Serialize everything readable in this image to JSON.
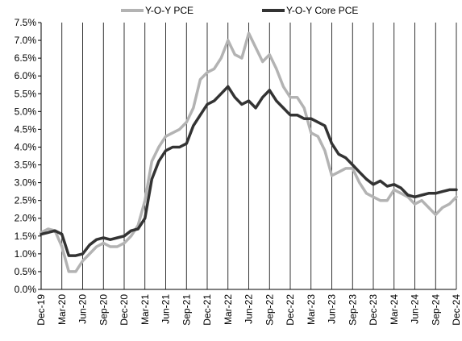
{
  "chart_data": {
    "type": "line",
    "title": "",
    "xlabel": "",
    "ylabel": "",
    "ylim": [
      0,
      7.5
    ],
    "y_ticks": [
      "0.0%",
      "0.5%",
      "1.0%",
      "1.5%",
      "2.0%",
      "2.5%",
      "3.0%",
      "3.5%",
      "4.0%",
      "4.5%",
      "5.0%",
      "5.5%",
      "6.0%",
      "6.5%",
      "7.0%",
      "7.5%"
    ],
    "x_ticks": [
      "Dec-19",
      "Mar-20",
      "Jun-20",
      "Sep-20",
      "Dec-20",
      "Mar-21",
      "Jun-21",
      "Sep-21",
      "Dec-21",
      "Mar-22",
      "Jun-22",
      "Sep-22",
      "Dec-22",
      "Mar-23",
      "Jun-23",
      "Sep-23",
      "Dec-23",
      "Mar-24",
      "Jun-24",
      "Sep-24",
      "Dec-24"
    ],
    "legend_position": "top",
    "grid": {
      "vertical": true,
      "horizontal": false
    },
    "x": [
      "Dec-19",
      "Jan-20",
      "Feb-20",
      "Mar-20",
      "Apr-20",
      "May-20",
      "Jun-20",
      "Jul-20",
      "Aug-20",
      "Sep-20",
      "Oct-20",
      "Nov-20",
      "Dec-20",
      "Jan-21",
      "Feb-21",
      "Mar-21",
      "Apr-21",
      "May-21",
      "Jun-21",
      "Jul-21",
      "Aug-21",
      "Sep-21",
      "Oct-21",
      "Nov-21",
      "Dec-21",
      "Jan-22",
      "Feb-22",
      "Mar-22",
      "Apr-22",
      "May-22",
      "Jun-22",
      "Jul-22",
      "Aug-22",
      "Sep-22",
      "Oct-22",
      "Nov-22",
      "Dec-22",
      "Jan-23",
      "Feb-23",
      "Mar-23",
      "Apr-23",
      "May-23",
      "Jun-23",
      "Jul-23",
      "Aug-23",
      "Sep-23",
      "Oct-23",
      "Nov-23",
      "Dec-23",
      "Jan-24",
      "Feb-24",
      "Mar-24",
      "Apr-24",
      "May-24",
      "Jun-24",
      "Jul-24",
      "Aug-24",
      "Sep-24",
      "Oct-24",
      "Nov-24",
      "Dec-24"
    ],
    "series": [
      {
        "name": "Y-O-Y PCE",
        "color": "#b3b3b3",
        "values": [
          1.6,
          1.7,
          1.65,
          1.2,
          0.5,
          0.5,
          0.8,
          1.0,
          1.2,
          1.3,
          1.2,
          1.2,
          1.3,
          1.5,
          1.8,
          2.5,
          3.6,
          4.0,
          4.3,
          4.4,
          4.5,
          4.7,
          5.1,
          5.9,
          6.1,
          6.2,
          6.5,
          7.0,
          6.6,
          6.5,
          7.2,
          6.8,
          6.4,
          6.6,
          6.2,
          5.7,
          5.4,
          5.4,
          5.1,
          4.4,
          4.3,
          3.9,
          3.2,
          3.3,
          3.4,
          3.4,
          3.0,
          2.7,
          2.6,
          2.5,
          2.5,
          2.8,
          2.7,
          2.6,
          2.4,
          2.5,
          2.3,
          2.1,
          2.3,
          2.4,
          2.6
        ]
      },
      {
        "name": "Y-O-Y Core PCE",
        "color": "#333333",
        "values": [
          1.55,
          1.6,
          1.65,
          1.55,
          0.95,
          0.95,
          1.0,
          1.25,
          1.4,
          1.45,
          1.4,
          1.45,
          1.5,
          1.65,
          1.7,
          2.0,
          3.1,
          3.6,
          3.9,
          4.0,
          4.0,
          4.1,
          4.6,
          4.9,
          5.2,
          5.3,
          5.5,
          5.7,
          5.4,
          5.2,
          5.3,
          5.1,
          5.4,
          5.6,
          5.3,
          5.1,
          4.9,
          4.9,
          4.8,
          4.8,
          4.7,
          4.6,
          4.1,
          3.8,
          3.7,
          3.5,
          3.3,
          3.1,
          2.95,
          3.05,
          2.9,
          2.95,
          2.85,
          2.65,
          2.6,
          2.65,
          2.7,
          2.7,
          2.75,
          2.8,
          2.8
        ]
      }
    ]
  }
}
